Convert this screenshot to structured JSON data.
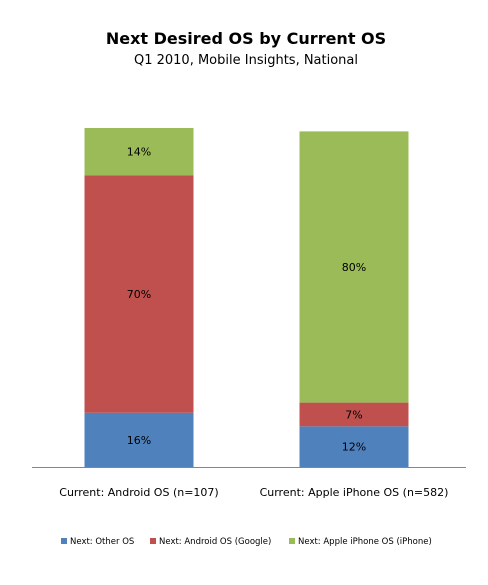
{
  "chart_data": {
    "type": "bar",
    "stacked": true,
    "title": "Next Desired OS by Current OS",
    "subtitle": "Q1 2010, Mobile Insights, National",
    "categories": [
      "Current: Android OS (n=107)",
      "Current: Apple iPhone OS (n=582)"
    ],
    "series": [
      {
        "name": "Next: Other OS",
        "color": "#4F81BD",
        "values": [
          16,
          12
        ],
        "labels": [
          "16%",
          "12%"
        ]
      },
      {
        "name": "Next: Android OS (Google)",
        "color": "#C0504D",
        "values": [
          70,
          7
        ],
        "labels": [
          "70%",
          "7%"
        ]
      },
      {
        "name": "Next: Apple iPhone OS (iPhone)",
        "color": "#9BBB59",
        "values": [
          14,
          80
        ],
        "labels": [
          "14%",
          "80%"
        ]
      }
    ],
    "ylim": [
      0,
      100
    ],
    "grid": false,
    "legend_position": "bottom",
    "xlabel": "",
    "ylabel": ""
  }
}
